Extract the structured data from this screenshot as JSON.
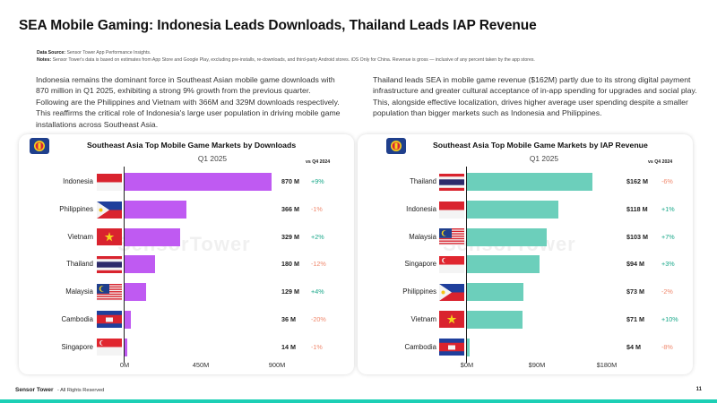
{
  "title": "SEA Mobile Gaming: Indonesia Leads Downloads, Thailand Leads IAP Revenue",
  "source": {
    "label": "Data Source:",
    "text": "Sensor Tower App Performance Insights.",
    "notes_label": "Notes:",
    "notes_text": "Sensor Tower's data is based on estimates from App Store and Google Play, excluding pre-installs, re-downloads, and third-party Android stores. iOS Only for China.  Revenue is gross — inclusive of any percent taken by the app stores."
  },
  "desc_left": "Indonesia remains the dominant force in Southeast Asian mobile game downloads with 870 million in Q1 2025, exhibiting a strong 9% growth from the previous quarter. Following are the Philippines and Vietnam with 366M and 329M downloads respectively. This reaffirms the critical role of Indonesia's large user population in driving mobile game installations across Southeast Asia.",
  "desc_right": "Thailand leads SEA in mobile game revenue ($162M) partly due to its strong digital payment infrastructure and greater cultural acceptance of in-app spending for upgrades and social play. This, alongside effective localization, drives higher average user spending despite a smaller population than bigger markets such as Indonesia and Philippines.",
  "colors": {
    "downloads_bar": "#bf5af2",
    "revenue_bar": "#6ccfbb",
    "positive": "#1aa88a",
    "negative": "#f0896e",
    "accent": "#1dcfb5"
  },
  "watermark": "SensorTower",
  "chart_data": [
    {
      "type": "bar",
      "orientation": "horizontal",
      "title": "Southeast Asia Top Mobile Game Markets by Downloads",
      "period": "Q1 2025",
      "change_header": "vs Q4 2024",
      "categories": [
        "Indonesia",
        "Philippines",
        "Vietnam",
        "Thailand",
        "Malaysia",
        "Cambodia",
        "Singapore"
      ],
      "flags": [
        "flag-indonesia-icon",
        "flag-philippines-icon",
        "flag-vietnam-icon",
        "flag-thailand-icon",
        "flag-malaysia-icon",
        "flag-cambodia-icon",
        "flag-singapore-icon"
      ],
      "values": [
        870,
        366,
        329,
        180,
        129,
        36,
        14
      ],
      "value_labels": [
        "870 M",
        "366 M",
        "329 M",
        "180 M",
        "129 M",
        "36 M",
        "14 M"
      ],
      "changes": [
        "+9%",
        "-1%",
        "+2%",
        "-12%",
        "+4%",
        "-20%",
        "-1%"
      ],
      "xlim": [
        0,
        900
      ],
      "xticks": [
        "0M",
        "450M",
        "900M"
      ]
    },
    {
      "type": "bar",
      "orientation": "horizontal",
      "title": "Southeast Asia Top Mobile Game Markets by IAP Revenue",
      "period": "Q1 2025",
      "change_header": "vs Q4 2024",
      "categories": [
        "Thailand",
        "Indonesia",
        "Malaysia",
        "Singapore",
        "Philippines",
        "Vietnam",
        "Cambodia"
      ],
      "flags": [
        "flag-thailand-icon",
        "flag-indonesia-icon",
        "flag-malaysia-icon",
        "flag-singapore-icon",
        "flag-philippines-icon",
        "flag-vietnam-icon",
        "flag-cambodia-icon"
      ],
      "values": [
        162,
        118,
        103,
        94,
        73,
        71,
        4
      ],
      "value_labels": [
        "$162 M",
        "$118 M",
        "$103 M",
        "$94 M",
        "$73 M",
        "$71 M",
        "$4 M"
      ],
      "changes": [
        "-6%",
        "+1%",
        "+7%",
        "+3%",
        "-2%",
        "+10%",
        "-8%"
      ],
      "xlim": [
        0,
        180
      ],
      "xticks": [
        "$0M",
        "$90M",
        "$180M"
      ]
    }
  ],
  "footer": {
    "logo": "Sensor Tower",
    "rights": "- All Rights Reserved",
    "page": "11"
  }
}
